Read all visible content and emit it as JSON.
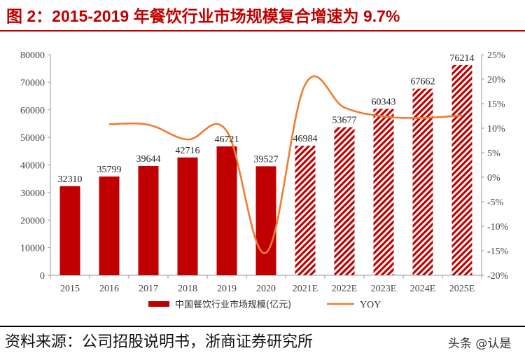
{
  "header": {
    "title": "图 2：2015-2019 年餐饮行业市场规模复合增速为 9.7%"
  },
  "footer": {
    "source": "资料来源：公司招股说明书，浙商证券研究所",
    "watermark": "头条 @认是"
  },
  "colors": {
    "bar": "#c00000",
    "line": "#ed7d31",
    "title": "#c00000",
    "axis": "#999999"
  },
  "chart_data": {
    "type": "bar",
    "title": "2015-2019 年餐饮行业市场规模复合增速为 9.7%",
    "categories": [
      "2015",
      "2016",
      "2017",
      "2018",
      "2019",
      "2020",
      "2021E",
      "2022E",
      "2023E",
      "2024E",
      "2025E"
    ],
    "forecast_from_index": 6,
    "series": [
      {
        "name": "中国餐饮行业市场规模(亿元)",
        "axis": "left",
        "kind": "bar",
        "values": [
          32310,
          35799,
          39644,
          42716,
          46721,
          39527,
          46984,
          53677,
          60343,
          67662,
          76214
        ]
      },
      {
        "name": "YOY",
        "axis": "right",
        "kind": "line",
        "values": [
          null,
          10.8,
          10.7,
          7.7,
          9.4,
          -15.4,
          18.9,
          14.2,
          12.4,
          12.1,
          12.6
        ]
      }
    ],
    "left_axis": {
      "min": 0,
      "max": 80000,
      "step": 10000,
      "ticks": [
        "0",
        "10000",
        "20000",
        "30000",
        "40000",
        "50000",
        "60000",
        "70000",
        "80000"
      ]
    },
    "right_axis": {
      "min": -20,
      "max": 25,
      "step": 5,
      "ticks": [
        "-20%",
        "-15%",
        "-10%",
        "-5%",
        "0%",
        "5%",
        "10%",
        "15%",
        "20%",
        "25%"
      ]
    },
    "legend": {
      "position": "bottom",
      "bar_label": "中国餐饮行业市场规模(亿元)",
      "line_label": "YOY"
    }
  }
}
